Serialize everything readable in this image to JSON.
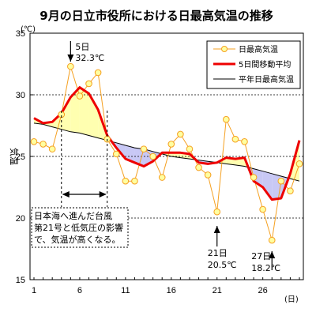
{
  "chart_data": {
    "type": "line",
    "title": "9月の日立市役所における日最高気温の推移",
    "ylabel": "気温",
    "y_unit": "(℃)",
    "x_unit": "(日)",
    "xlim": [
      1,
      30
    ],
    "ylim": [
      15,
      35
    ],
    "x_ticks": [
      "1",
      "6",
      "11",
      "16",
      "21",
      "26"
    ],
    "y_ticks": [
      "15",
      "20",
      "25",
      "30",
      "35"
    ],
    "grid": "y-dashed",
    "legend_position": "top-right",
    "days": [
      1,
      2,
      3,
      4,
      5,
      6,
      7,
      8,
      9,
      10,
      11,
      12,
      13,
      14,
      15,
      16,
      17,
      18,
      19,
      20,
      21,
      22,
      23,
      24,
      25,
      26,
      27,
      28,
      29,
      30
    ],
    "series": [
      {
        "name": "日最高気温",
        "color": "#f5a020",
        "style": "line-circle-markers",
        "values": [
          26.2,
          26.0,
          25.6,
          28.4,
          32.3,
          29.9,
          30.9,
          31.8,
          26.4,
          25.2,
          23.0,
          23.0,
          25.6,
          25.0,
          23.3,
          26.0,
          26.8,
          25.6,
          24.1,
          23.5,
          20.5,
          28.0,
          26.4,
          26.2,
          23.3,
          20.7,
          18.2,
          23.0,
          22.2,
          24.4
        ]
      },
      {
        "name": "5日間移動平均",
        "color": "#ee0000",
        "style": "thick-line",
        "values": [
          28.1,
          27.7,
          27.8,
          28.5,
          29.8,
          30.6,
          30.1,
          28.8,
          26.7,
          25.7,
          24.8,
          24.5,
          24.2,
          24.6,
          25.3,
          25.3,
          25.3,
          25.2,
          24.5,
          24.4,
          24.5,
          24.9,
          24.8,
          24.9,
          23.0,
          22.5,
          21.5,
          21.6,
          23.6,
          26.3
        ]
      },
      {
        "name": "平年日最高気温",
        "color": "#000000",
        "style": "thin-line",
        "values": [
          27.7,
          27.6,
          27.4,
          27.2,
          27.0,
          26.9,
          26.7,
          26.5,
          26.3,
          26.1,
          25.9,
          25.7,
          25.6,
          25.4,
          25.2,
          25.0,
          24.9,
          24.8,
          24.7,
          24.6,
          24.5,
          24.4,
          24.3,
          24.2,
          24.0,
          23.8,
          23.6,
          23.4,
          23.2,
          23.0
        ]
      }
    ],
    "fill_colors": {
      "above_normal": "#ffffb0",
      "below_normal": "#c8c8f5"
    },
    "annotations": [
      {
        "id": "peak",
        "lines": [
          "5日",
          "32.3℃"
        ],
        "day": 5,
        "value": 32.3
      },
      {
        "id": "d21",
        "lines": [
          "21日",
          "20.5℃"
        ],
        "day": 21,
        "value": 20.5
      },
      {
        "id": "d27",
        "lines": [
          "27日",
          "18.2℃"
        ],
        "day": 27,
        "value": 18.2
      }
    ],
    "range_note": {
      "day_from": 4,
      "day_to": 9,
      "lines": [
        "日本海へ進んだ台風",
        "第21号と低気圧の影響",
        "で、気温が高くなる。"
      ]
    }
  }
}
